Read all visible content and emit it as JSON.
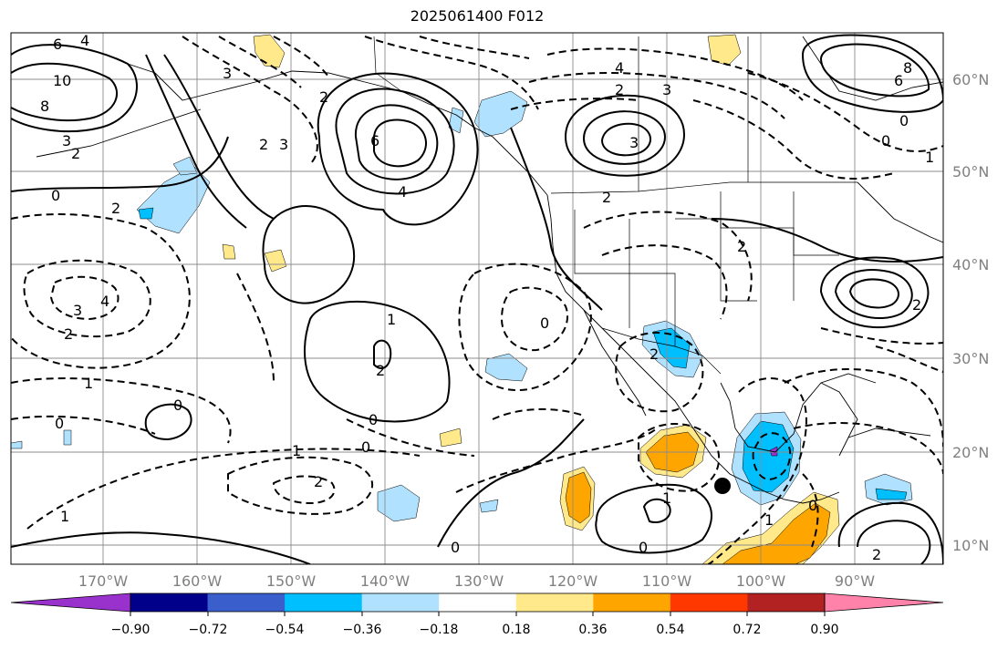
{
  "map": {
    "title": "2025061400 F012",
    "lat_labels": [
      "60°N",
      "50°N",
      "40°N",
      "30°N",
      "20°N",
      "10°N"
    ],
    "lon_labels": [
      "170°W",
      "160°W",
      "150°W",
      "140°W",
      "130°W",
      "120°W",
      "110°W",
      "100°W",
      "90°W"
    ],
    "contour_labels": [
      "6",
      "4",
      "10",
      "8",
      "3",
      "2",
      "0",
      "2",
      "3",
      "6",
      "4",
      "2",
      "3",
      "2",
      "4",
      "3",
      "2",
      "2",
      "3",
      "6",
      "8",
      "0",
      "0",
      "1",
      "2",
      "4",
      "3",
      "2",
      "1",
      "0",
      "1",
      "2",
      "0",
      "0",
      "0",
      "1",
      "2",
      "0",
      "1",
      "0",
      "1",
      "2",
      "2",
      "0",
      "1",
      "0",
      "2"
    ],
    "colorbar": {
      "ticks": [
        "−0.90",
        "−0.72",
        "−0.54",
        "−0.36",
        "−0.18",
        "0.18",
        "0.36",
        "0.54",
        "0.72",
        "0.90"
      ],
      "colors": [
        "#9932cc",
        "#00008b",
        "#3a5fcd",
        "#00bfff",
        "#b0e2ff",
        "#ffffff",
        "#ffe98a",
        "#ffa500",
        "#ff3800",
        "#b22222",
        "#ff82ab"
      ]
    },
    "shading_colors": {
      "pos_light": "#ffe98a",
      "pos_mid": "#ffa500",
      "neg_light": "#b0e2ff",
      "neg_mid": "#00bfff",
      "neg_dark": "#9932cc"
    },
    "marker": "storm-center"
  }
}
